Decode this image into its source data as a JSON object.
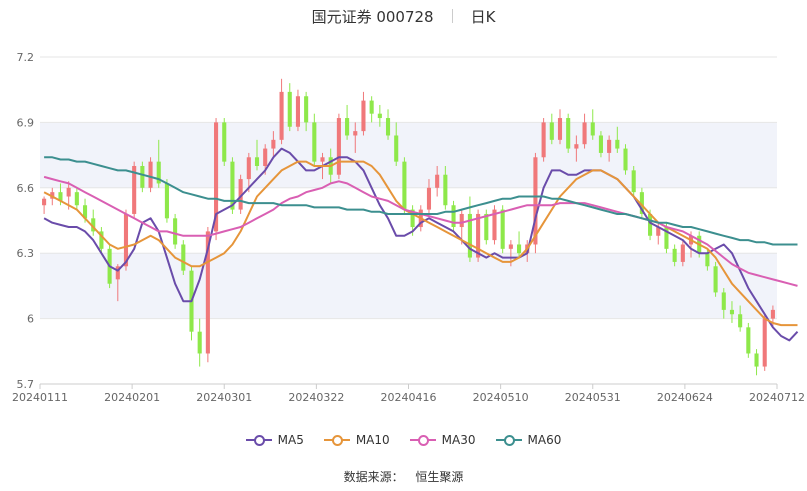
{
  "header": {
    "title": "国元证券 000728",
    "period": "日K"
  },
  "source": {
    "label": "数据来源：",
    "value": "恒生聚源"
  },
  "colors": {
    "up": "#f0787a",
    "down": "#8ee84a",
    "ma5": "#6a4caa",
    "ma10": "#e6953a",
    "ma30": "#d95fb3",
    "ma60": "#3c8f8f",
    "band": "#f1f3fa",
    "grid": "#e6e6e6"
  },
  "chart_data": {
    "type": "candlestick",
    "ylim": [
      5.7,
      7.2
    ],
    "yticks": [
      "7.2",
      "6.9",
      "6.6",
      "6.3",
      "6",
      "5.7"
    ],
    "xticks": [
      "20240111",
      "20240201",
      "20240301",
      "20240322",
      "20240416",
      "20240510",
      "20240531",
      "20240624",
      "20240712"
    ],
    "ohlc": [
      [
        6.52,
        6.56,
        6.48,
        6.55
      ],
      [
        6.55,
        6.6,
        6.52,
        6.58
      ],
      [
        6.58,
        6.62,
        6.52,
        6.54
      ],
      [
        6.56,
        6.63,
        6.5,
        6.6
      ],
      [
        6.58,
        6.6,
        6.5,
        6.52
      ],
      [
        6.52,
        6.55,
        6.44,
        6.46
      ],
      [
        6.46,
        6.5,
        6.38,
        6.4
      ],
      [
        6.4,
        6.42,
        6.3,
        6.32
      ],
      [
        6.32,
        6.34,
        6.14,
        6.16
      ],
      [
        6.18,
        6.25,
        6.08,
        6.24
      ],
      [
        6.24,
        6.5,
        6.22,
        6.48
      ],
      [
        6.48,
        6.72,
        6.46,
        6.7
      ],
      [
        6.7,
        6.72,
        6.58,
        6.6
      ],
      [
        6.6,
        6.74,
        6.58,
        6.72
      ],
      [
        6.72,
        6.82,
        6.6,
        6.62
      ],
      [
        6.62,
        6.64,
        6.44,
        6.46
      ],
      [
        6.46,
        6.48,
        6.32,
        6.34
      ],
      [
        6.34,
        6.36,
        6.2,
        6.22
      ],
      [
        6.22,
        6.24,
        5.9,
        5.94
      ],
      [
        5.94,
        6.0,
        5.78,
        5.84
      ],
      [
        5.84,
        6.42,
        5.8,
        6.4
      ],
      [
        6.4,
        6.92,
        6.36,
        6.9
      ],
      [
        6.9,
        6.92,
        6.7,
        6.72
      ],
      [
        6.72,
        6.74,
        6.48,
        6.5
      ],
      [
        6.5,
        6.66,
        6.48,
        6.64
      ],
      [
        6.64,
        6.76,
        6.58,
        6.74
      ],
      [
        6.74,
        6.82,
        6.68,
        6.7
      ],
      [
        6.7,
        6.8,
        6.66,
        6.78
      ],
      [
        6.78,
        6.86,
        6.74,
        6.82
      ],
      [
        6.82,
        7.1,
        6.8,
        7.04
      ],
      [
        7.04,
        7.08,
        6.86,
        6.88
      ],
      [
        6.88,
        7.05,
        6.86,
        7.02
      ],
      [
        7.02,
        7.04,
        6.86,
        6.9
      ],
      [
        6.9,
        6.94,
        6.7,
        6.72
      ],
      [
        6.72,
        6.76,
        6.64,
        6.74
      ],
      [
        6.74,
        6.78,
        6.62,
        6.66
      ],
      [
        6.66,
        6.94,
        6.64,
        6.92
      ],
      [
        6.92,
        6.98,
        6.82,
        6.84
      ],
      [
        6.84,
        6.9,
        6.76,
        6.86
      ],
      [
        6.86,
        7.04,
        6.84,
        7.0
      ],
      [
        7.0,
        7.02,
        6.9,
        6.94
      ],
      [
        6.94,
        6.98,
        6.88,
        6.92
      ],
      [
        6.92,
        6.96,
        6.82,
        6.84
      ],
      [
        6.84,
        6.9,
        6.7,
        6.72
      ],
      [
        6.72,
        6.74,
        6.48,
        6.5
      ],
      [
        6.5,
        6.52,
        6.38,
        6.42
      ],
      [
        6.42,
        6.52,
        6.4,
        6.5
      ],
      [
        6.5,
        6.64,
        6.48,
        6.6
      ],
      [
        6.6,
        6.7,
        6.56,
        6.66
      ],
      [
        6.66,
        6.7,
        6.5,
        6.52
      ],
      [
        6.52,
        6.54,
        6.4,
        6.42
      ],
      [
        6.42,
        6.5,
        6.34,
        6.48
      ],
      [
        6.48,
        6.56,
        6.26,
        6.28
      ],
      [
        6.28,
        6.5,
        6.26,
        6.48
      ],
      [
        6.48,
        6.5,
        6.34,
        6.36
      ],
      [
        6.36,
        6.52,
        6.34,
        6.5
      ],
      [
        6.5,
        6.52,
        6.3,
        6.32
      ],
      [
        6.32,
        6.36,
        6.24,
        6.34
      ],
      [
        6.34,
        6.4,
        6.28,
        6.3
      ],
      [
        6.3,
        6.36,
        6.26,
        6.34
      ],
      [
        6.34,
        6.76,
        6.3,
        6.74
      ],
      [
        6.74,
        6.92,
        6.72,
        6.9
      ],
      [
        6.9,
        6.94,
        6.8,
        6.82
      ],
      [
        6.82,
        6.96,
        6.8,
        6.92
      ],
      [
        6.92,
        6.94,
        6.76,
        6.78
      ],
      [
        6.78,
        6.84,
        6.72,
        6.8
      ],
      [
        6.8,
        6.94,
        6.78,
        6.9
      ],
      [
        6.9,
        6.96,
        6.82,
        6.84
      ],
      [
        6.84,
        6.86,
        6.74,
        6.76
      ],
      [
        6.76,
        6.84,
        6.72,
        6.82
      ],
      [
        6.82,
        6.88,
        6.76,
        6.78
      ],
      [
        6.78,
        6.8,
        6.66,
        6.68
      ],
      [
        6.68,
        6.7,
        6.56,
        6.58
      ],
      [
        6.58,
        6.6,
        6.46,
        6.48
      ],
      [
        6.48,
        6.5,
        6.36,
        6.38
      ],
      [
        6.38,
        6.44,
        6.34,
        6.42
      ],
      [
        6.42,
        6.44,
        6.3,
        6.32
      ],
      [
        6.32,
        6.34,
        6.24,
        6.26
      ],
      [
        6.26,
        6.36,
        6.24,
        6.34
      ],
      [
        6.34,
        6.4,
        6.28,
        6.38
      ],
      [
        6.38,
        6.4,
        6.28,
        6.3
      ],
      [
        6.3,
        6.32,
        6.22,
        6.24
      ],
      [
        6.24,
        6.26,
        6.1,
        6.12
      ],
      [
        6.12,
        6.14,
        6.0,
        6.04
      ],
      [
        6.04,
        6.08,
        5.98,
        6.02
      ],
      [
        6.02,
        6.06,
        5.94,
        5.96
      ],
      [
        5.96,
        5.98,
        5.82,
        5.84
      ],
      [
        5.84,
        5.86,
        5.74,
        5.78
      ],
      [
        5.78,
        6.02,
        5.76,
        6.0
      ],
      [
        6.0,
        6.06,
        5.96,
        6.04
      ]
    ],
    "series": [
      {
        "name": "MA5",
        "values": [
          6.46,
          6.44,
          6.43,
          6.42,
          6.42,
          6.4,
          6.36,
          6.3,
          6.24,
          6.22,
          6.26,
          6.32,
          6.44,
          6.46,
          6.4,
          6.28,
          6.16,
          6.08,
          6.08,
          6.18,
          6.32,
          6.48,
          6.5,
          6.52,
          6.56,
          6.6,
          6.64,
          6.68,
          6.74,
          6.78,
          6.76,
          6.72,
          6.68,
          6.68,
          6.7,
          6.72,
          6.74,
          6.74,
          6.72,
          6.68,
          6.6,
          6.52,
          6.46,
          6.38,
          6.38,
          6.4,
          6.44,
          6.46,
          6.44,
          6.42,
          6.4,
          6.36,
          6.32,
          6.3,
          6.28,
          6.3,
          6.28,
          6.28,
          6.28,
          6.3,
          6.46,
          6.6,
          6.68,
          6.68,
          6.66,
          6.66,
          6.68,
          6.68,
          6.68,
          6.66,
          6.64,
          6.6,
          6.56,
          6.5,
          6.44,
          6.42,
          6.4,
          6.38,
          6.36,
          6.32,
          6.3,
          6.3,
          6.32,
          6.34,
          6.3,
          6.22,
          6.14,
          6.08,
          6.02,
          5.96,
          5.92,
          5.9,
          5.94
        ]
      },
      {
        "name": "MA10",
        "values": [
          6.58,
          6.56,
          6.54,
          6.52,
          6.5,
          6.46,
          6.42,
          6.38,
          6.34,
          6.32,
          6.33,
          6.34,
          6.36,
          6.38,
          6.36,
          6.32,
          6.28,
          6.26,
          6.24,
          6.24,
          6.26,
          6.28,
          6.3,
          6.34,
          6.4,
          6.48,
          6.56,
          6.6,
          6.64,
          6.68,
          6.7,
          6.72,
          6.72,
          6.7,
          6.7,
          6.7,
          6.72,
          6.72,
          6.72,
          6.72,
          6.7,
          6.66,
          6.6,
          6.54,
          6.5,
          6.48,
          6.46,
          6.44,
          6.42,
          6.4,
          6.38,
          6.36,
          6.34,
          6.32,
          6.3,
          6.28,
          6.26,
          6.26,
          6.28,
          6.32,
          6.38,
          6.44,
          6.5,
          6.56,
          6.6,
          6.64,
          6.66,
          6.68,
          6.68,
          6.66,
          6.64,
          6.6,
          6.56,
          6.52,
          6.48,
          6.44,
          6.42,
          6.4,
          6.38,
          6.36,
          6.34,
          6.32,
          6.28,
          6.22,
          6.16,
          6.12,
          6.08,
          6.04,
          6.0,
          5.98,
          5.97,
          5.97,
          5.97
        ]
      },
      {
        "name": "MA30",
        "values": [
          6.65,
          6.64,
          6.63,
          6.62,
          6.6,
          6.58,
          6.56,
          6.54,
          6.52,
          6.5,
          6.48,
          6.46,
          6.44,
          6.42,
          6.4,
          6.4,
          6.39,
          6.38,
          6.38,
          6.38,
          6.38,
          6.39,
          6.4,
          6.41,
          6.42,
          6.44,
          6.46,
          6.48,
          6.5,
          6.53,
          6.55,
          6.56,
          6.58,
          6.59,
          6.6,
          6.62,
          6.63,
          6.62,
          6.6,
          6.58,
          6.56,
          6.55,
          6.54,
          6.52,
          6.5,
          6.49,
          6.48,
          6.47,
          6.46,
          6.45,
          6.44,
          6.44,
          6.45,
          6.46,
          6.47,
          6.48,
          6.49,
          6.5,
          6.51,
          6.52,
          6.52,
          6.52,
          6.52,
          6.53,
          6.53,
          6.53,
          6.53,
          6.52,
          6.51,
          6.5,
          6.49,
          6.48,
          6.47,
          6.46,
          6.45,
          6.44,
          6.42,
          6.41,
          6.4,
          6.38,
          6.36,
          6.34,
          6.31,
          6.28,
          6.25,
          6.23,
          6.21,
          6.2,
          6.19,
          6.18,
          6.17,
          6.16,
          6.15
        ]
      },
      {
        "name": "MA60",
        "values": [
          6.74,
          6.74,
          6.73,
          6.73,
          6.72,
          6.72,
          6.71,
          6.7,
          6.69,
          6.68,
          6.68,
          6.67,
          6.66,
          6.65,
          6.64,
          6.62,
          6.6,
          6.58,
          6.57,
          6.56,
          6.55,
          6.55,
          6.54,
          6.54,
          6.54,
          6.53,
          6.53,
          6.53,
          6.53,
          6.52,
          6.52,
          6.52,
          6.52,
          6.51,
          6.51,
          6.51,
          6.51,
          6.5,
          6.5,
          6.5,
          6.49,
          6.49,
          6.48,
          6.48,
          6.48,
          6.48,
          6.48,
          6.48,
          6.48,
          6.49,
          6.49,
          6.5,
          6.51,
          6.52,
          6.53,
          6.54,
          6.55,
          6.55,
          6.56,
          6.56,
          6.56,
          6.56,
          6.55,
          6.55,
          6.54,
          6.53,
          6.52,
          6.51,
          6.5,
          6.49,
          6.48,
          6.48,
          6.47,
          6.46,
          6.45,
          6.44,
          6.44,
          6.43,
          6.42,
          6.42,
          6.41,
          6.4,
          6.39,
          6.38,
          6.37,
          6.36,
          6.36,
          6.35,
          6.35,
          6.34,
          6.34,
          6.34,
          6.34
        ]
      }
    ]
  }
}
